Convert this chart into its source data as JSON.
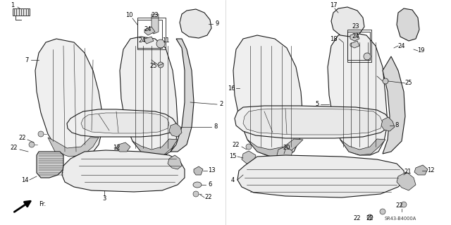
{
  "bg": "#ffffff",
  "lc": "#1a1a1a",
  "lw": 0.8,
  "fig_w": 6.4,
  "fig_h": 3.19,
  "dpi": 100,
  "ref_code": "SR43-B4000A"
}
